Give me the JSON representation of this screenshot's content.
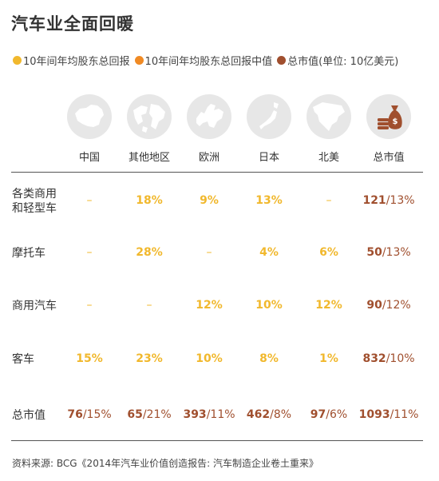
{
  "title": "汽车业全面回暖",
  "legend": [
    {
      "label": "10年间年均股东总回报",
      "color": "#f1b82d"
    },
    {
      "label": "10年间年均股东总回报中值",
      "color": "#f08a24"
    },
    {
      "label": "总市值(单位: 10亿美元)",
      "color": "#a04f2e"
    }
  ],
  "columns": [
    {
      "label": "中国",
      "icon": "china-map-icon"
    },
    {
      "label": "其他地区",
      "icon": "globe-icon"
    },
    {
      "label": "欧洲",
      "icon": "europe-map-icon"
    },
    {
      "label": "日本",
      "icon": "japan-map-icon"
    },
    {
      "label": "北美",
      "icon": "north-america-map-icon"
    },
    {
      "label": "总市值",
      "icon": "money-bag-coins-icon"
    }
  ],
  "rows": [
    {
      "label": "各类商用\n和轻型车",
      "cells": [
        "–",
        "18%",
        "9%",
        "13%",
        "–",
        {
          "value": "121",
          "pct": "13%"
        }
      ]
    },
    {
      "label": "摩托车",
      "cells": [
        "–",
        "28%",
        "–",
        "4%",
        "6%",
        {
          "value": "50",
          "pct": "13%"
        }
      ]
    },
    {
      "label": "商用汽车",
      "cells": [
        "–",
        "–",
        "12%",
        "10%",
        "12%",
        {
          "value": "90",
          "pct": "12%"
        }
      ]
    },
    {
      "label": "客车",
      "cells": [
        "15%",
        "23%",
        "10%",
        "8%",
        "1%",
        {
          "value": "832",
          "pct": "10%"
        }
      ]
    },
    {
      "label": "总市值",
      "cells": [
        {
          "value": "76",
          "pct": "15%"
        },
        {
          "value": "65",
          "pct": "21%"
        },
        {
          "value": "393",
          "pct": "11%"
        },
        {
          "value": "462",
          "pct": "8%"
        },
        {
          "value": "97",
          "pct": "6%"
        },
        {
          "value": "1093",
          "pct": "11%"
        }
      ]
    }
  ],
  "source": "资料来源: BCG《2014年汽车业价值创造报告: 汽车制造企业卷土重来》"
}
